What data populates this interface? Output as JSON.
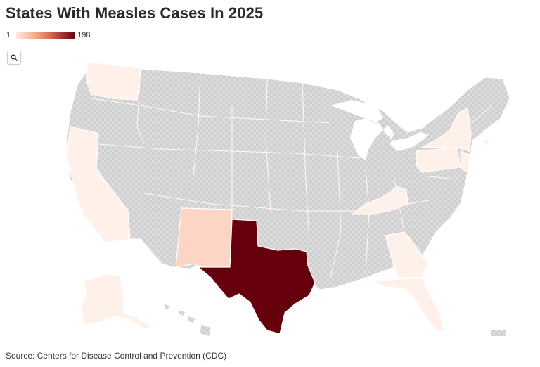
{
  "title": "States With Measles Cases In 2025",
  "legend": {
    "min_label": "1",
    "max_label": "198",
    "color_low": "#fde9e0",
    "color_high": "#67000d"
  },
  "zoom_button": {
    "icon": "search-icon"
  },
  "no_data_color": "#dadada",
  "source": "Source: Centers for Disease Control and Prevention (CDC)",
  "map_data": {
    "type": "choropleth",
    "region": "United States",
    "value_range": [
      1,
      198
    ],
    "states_with_cases": [
      {
        "state": "Texas",
        "level": 198,
        "color": "#67000d"
      },
      {
        "state": "New Mexico",
        "level": 9,
        "color": "#fdd5c4"
      },
      {
        "state": "Alaska",
        "level": 1,
        "color": "#fff0ea"
      },
      {
        "state": "California",
        "level": 1,
        "color": "#fff0ea"
      },
      {
        "state": "Washington",
        "level": 1,
        "color": "#fff0ea"
      },
      {
        "state": "Kentucky",
        "level": 1,
        "color": "#fff0ea"
      },
      {
        "state": "Georgia",
        "level": 1,
        "color": "#fff0ea"
      },
      {
        "state": "Florida",
        "level": 1,
        "color": "#fff0ea"
      },
      {
        "state": "New York",
        "level": 2,
        "color": "#fff0ea"
      },
      {
        "state": "Pennsylvania",
        "level": 1,
        "color": "#fff0ea"
      },
      {
        "state": "New Jersey",
        "level": 1,
        "color": "#fff0ea"
      },
      {
        "state": "Rhode Island",
        "level": 1,
        "color": "#fff0ea"
      }
    ]
  }
}
